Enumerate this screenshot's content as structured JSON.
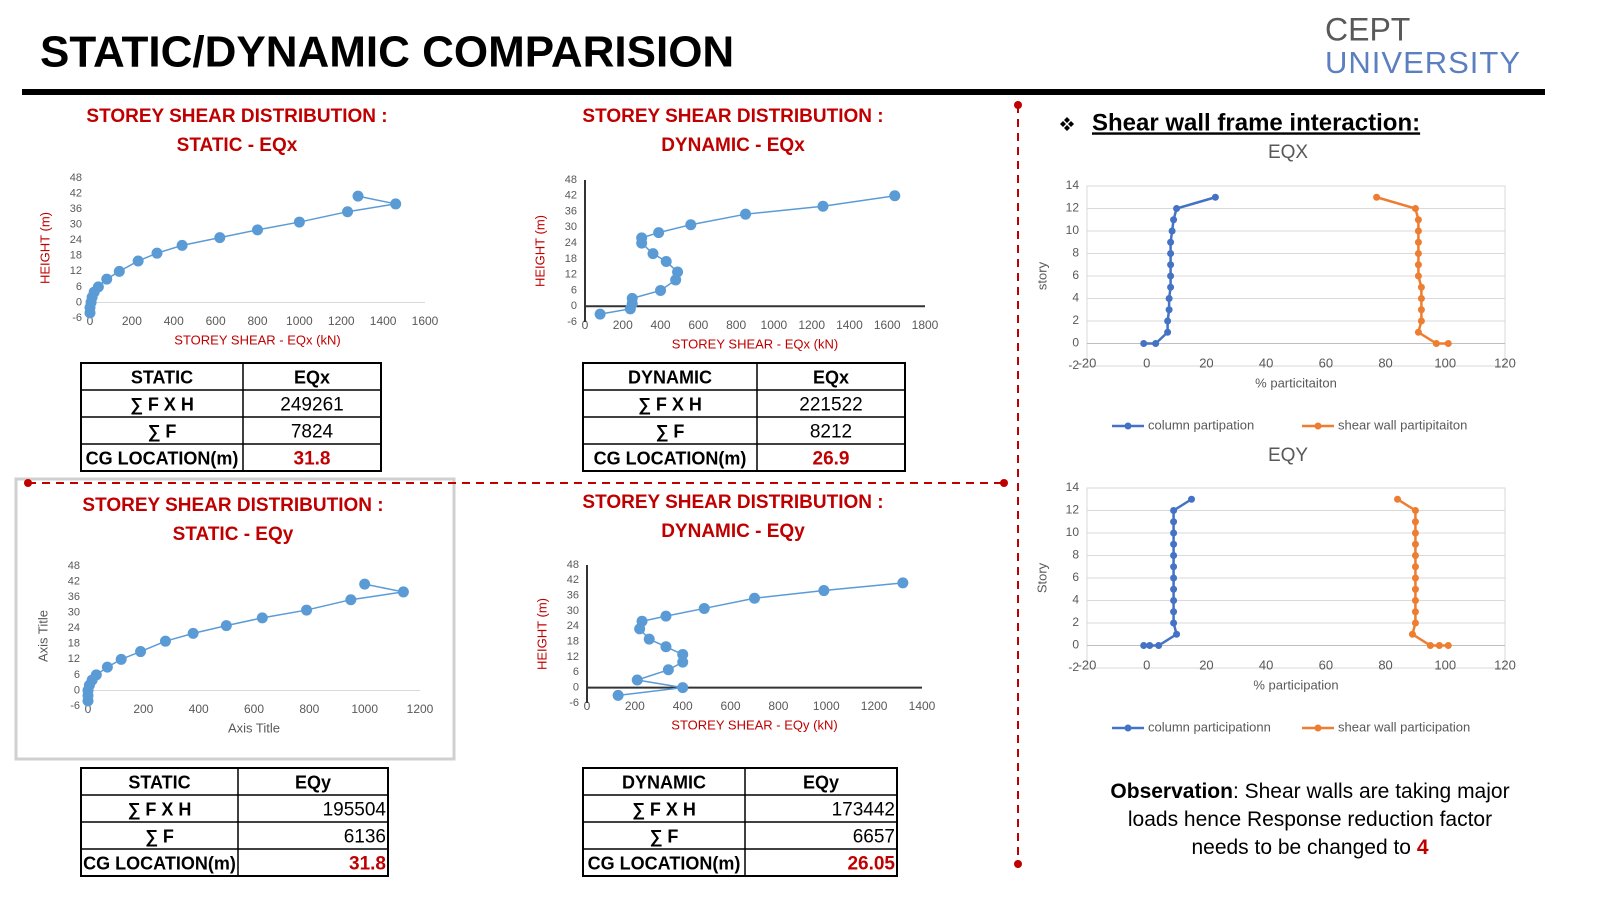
{
  "header": {
    "title": "STATIC/DYNAMIC  COMPARISION",
    "logo_top": "CEPT",
    "logo_bottom": "UNIVERSITY"
  },
  "section_heading": "Shear wall frame interaction:",
  "chart_data": [
    {
      "type": "line",
      "title": "STOREY SHEAR DISTRIBUTION :",
      "subtitle": "STATIC - EQx",
      "x_label": "STOREY SHEAR - EQx (kN)",
      "y_label": "HEIGHT (m)",
      "axis_label_color": "#c00000",
      "color": "#5b9bd5",
      "x": [
        1280,
        1460,
        1230,
        1000,
        800,
        620,
        440,
        320,
        230,
        140,
        80,
        40,
        20,
        10,
        5,
        0,
        0
      ],
      "values": [
        41,
        38,
        35,
        31,
        28,
        25,
        22,
        19,
        16,
        12,
        9,
        6,
        4,
        2,
        0,
        -2,
        -4
      ],
      "xlim": [
        0,
        1600
      ],
      "xticks": [
        0,
        200,
        400,
        600,
        800,
        1000,
        1200,
        1400,
        1600
      ],
      "ylim": [
        -6,
        48
      ],
      "yticks": [
        -6,
        0,
        6,
        12,
        18,
        24,
        30,
        36,
        42,
        48
      ],
      "grid": false,
      "y_axis_line": false
    },
    {
      "type": "line",
      "title": "STOREY SHEAR DISTRIBUTION :",
      "subtitle": "DYNAMIC - EQx",
      "x_label": "STOREY SHEAR - EQx (kN)",
      "y_label": "HEIGHT (m)",
      "axis_label_color": "#c00000",
      "color": "#5b9bd5",
      "x": [
        1640,
        1260,
        850,
        560,
        390,
        300,
        300,
        360,
        430,
        490,
        480,
        400,
        250,
        250,
        240,
        80
      ],
      "values": [
        42,
        38,
        35,
        31,
        28,
        26,
        24,
        20,
        17,
        13,
        10,
        6,
        3,
        1,
        -1,
        -3
      ],
      "xlim": [
        0,
        1800
      ],
      "xticks": [
        0,
        200,
        400,
        600,
        800,
        1000,
        1200,
        1400,
        1600,
        1800
      ],
      "ylim": [
        -6,
        48
      ],
      "yticks": [
        -6,
        0,
        6,
        12,
        18,
        24,
        30,
        36,
        42,
        48
      ],
      "grid": false,
      "y_axis_line": true
    },
    {
      "type": "line",
      "title": "STOREY SHEAR DISTRIBUTION :",
      "subtitle": "STATIC - EQy",
      "x_label": "Axis Title",
      "y_label": "Axis Title",
      "axis_label_color": "#595959",
      "color": "#5b9bd5",
      "x": [
        1000,
        1140,
        950,
        790,
        630,
        500,
        380,
        280,
        190,
        120,
        70,
        30,
        15,
        5,
        0,
        0,
        0
      ],
      "values": [
        41,
        38,
        35,
        31,
        28,
        25,
        22,
        19,
        15,
        12,
        9,
        6,
        4,
        2,
        0,
        -2,
        -4
      ],
      "xlim": [
        0,
        1200
      ],
      "xticks": [
        0,
        200,
        400,
        600,
        800,
        1000,
        1200
      ],
      "ylim": [
        -6,
        48
      ],
      "yticks": [
        -6,
        0,
        6,
        12,
        18,
        24,
        30,
        36,
        42,
        48
      ],
      "grid": false,
      "y_axis_line": false
    },
    {
      "type": "line",
      "title": "STOREY SHEAR DISTRIBUTION :",
      "subtitle": "DYNAMIC - EQy",
      "x_label": "STOREY SHEAR - EQy (kN)",
      "y_label": "HEIGHT (m)",
      "axis_label_color": "#c00000",
      "color": "#5b9bd5",
      "x": [
        1320,
        990,
        700,
        490,
        330,
        230,
        220,
        260,
        330,
        400,
        400,
        340,
        210,
        400,
        130
      ],
      "values": [
        41,
        38,
        35,
        31,
        28,
        26,
        23,
        19,
        16,
        13,
        10,
        7,
        3,
        0,
        -3
      ],
      "xlim": [
        0,
        1400
      ],
      "xticks": [
        0,
        200,
        400,
        600,
        800,
        1000,
        1200,
        1400
      ],
      "ylim": [
        -6,
        48
      ],
      "yticks": [
        -6,
        0,
        6,
        12,
        18,
        24,
        30,
        36,
        42,
        48
      ],
      "grid": false,
      "y_axis_line": true
    },
    {
      "type": "multiline",
      "title": "EQX",
      "x_label": "% particitaiton",
      "y_label": "story",
      "axis_label_color": "#595959",
      "series": [
        {
          "name": "column partipation",
          "color": "#4472c4",
          "x": [
            23,
            10,
            9,
            8.5,
            8,
            8,
            8,
            8,
            8,
            7.5,
            7.5,
            7,
            7,
            3,
            -1
          ],
          "values": [
            13,
            12,
            11,
            10,
            9,
            8,
            7,
            6,
            5,
            4,
            3,
            2,
            1,
            0,
            0
          ]
        },
        {
          "name": "shear wall partipitaiton",
          "color": "#ed7d31",
          "x": [
            77,
            90,
            91,
            91,
            91,
            91,
            91,
            91,
            92,
            92,
            92,
            92,
            91,
            97,
            101
          ],
          "values": [
            13,
            12,
            11,
            10,
            9,
            8,
            7,
            6,
            5,
            4,
            3,
            2,
            1,
            0,
            0
          ]
        }
      ],
      "xlim": [
        -20,
        120
      ],
      "xticks": [
        -20,
        0,
        20,
        40,
        60,
        80,
        100,
        120
      ],
      "ylim": [
        -2,
        14
      ],
      "yticks": [
        -2,
        0,
        2,
        4,
        6,
        8,
        10,
        12,
        14
      ],
      "grid": true
    },
    {
      "type": "multiline",
      "title": "EQY",
      "x_label": "% participation",
      "y_label": "Story",
      "axis_label_color": "#595959",
      "series": [
        {
          "name": "column participationn",
          "color": "#4472c4",
          "x": [
            15,
            9,
            9,
            9,
            9,
            9,
            9,
            9,
            9,
            9,
            9,
            9,
            10,
            4,
            1,
            -1
          ],
          "values": [
            13,
            12,
            11,
            10,
            9,
            8,
            7,
            6,
            5,
            4,
            3,
            2,
            1,
            0,
            0,
            0
          ]
        },
        {
          "name": "shear wall participation",
          "color": "#ed7d31",
          "x": [
            84,
            90,
            90,
            90,
            90,
            90,
            90,
            90,
            90,
            90,
            90,
            90,
            89,
            95,
            98,
            101
          ],
          "values": [
            13,
            12,
            11,
            10,
            9,
            8,
            7,
            6,
            5,
            4,
            3,
            2,
            1,
            0,
            0,
            0
          ]
        }
      ],
      "xlim": [
        -20,
        120
      ],
      "xticks": [
        -20,
        0,
        20,
        40,
        60,
        80,
        100,
        120
      ],
      "ylim": [
        -2,
        14
      ],
      "yticks": [
        -2,
        0,
        2,
        4,
        6,
        8,
        10,
        12,
        14
      ],
      "grid": true
    }
  ],
  "tables": [
    {
      "header": [
        "STATIC",
        "EQx"
      ],
      "rows": [
        [
          "∑ F X H",
          "249261"
        ],
        [
          "∑ F",
          "7824"
        ],
        [
          "CG LOCATION(m)",
          "31.8"
        ]
      ]
    },
    {
      "header": [
        "DYNAMIC",
        "EQx"
      ],
      "rows": [
        [
          "∑ F X H",
          "221522"
        ],
        [
          "∑ F",
          "8212"
        ],
        [
          "CG LOCATION(m)",
          "26.9"
        ]
      ]
    },
    {
      "header": [
        "STATIC",
        "EQy"
      ],
      "rows": [
        [
          "∑ F X H",
          "195504"
        ],
        [
          "∑ F",
          "6136"
        ],
        [
          "CG LOCATION(m)",
          "31.8"
        ]
      ]
    },
    {
      "header": [
        "DYNAMIC",
        "EQy"
      ],
      "rows": [
        [
          "∑ F X H",
          "173442"
        ],
        [
          "∑ F",
          "6657"
        ],
        [
          "CG LOCATION(m)",
          "26.05"
        ]
      ]
    }
  ],
  "observation": {
    "label": "Observation",
    "text": ": Shear walls are taking major loads hence Response reduction factor needs to be changed to ",
    "value": "4"
  }
}
